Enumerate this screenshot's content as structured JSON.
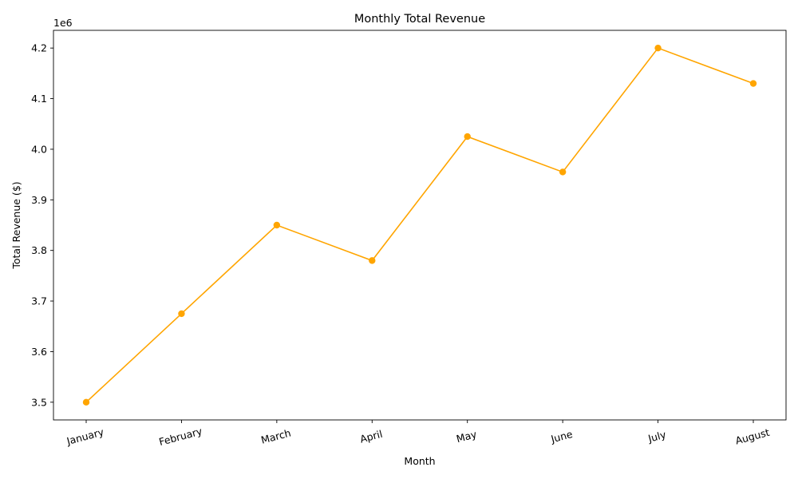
{
  "chart_data": {
    "type": "line",
    "title": "Monthly Total Revenue",
    "xlabel": "Month",
    "ylabel": "Total Revenue ($)",
    "y_offset_label": "1e6",
    "categories": [
      "January",
      "February",
      "March",
      "April",
      "May",
      "June",
      "July",
      "August"
    ],
    "series": [
      {
        "values": [
          3500000,
          3675000,
          3850000,
          3780000,
          4025000,
          3955000,
          4200000,
          4130000
        ],
        "color": "#ffa500",
        "marker": "circle"
      }
    ],
    "y_ticks": [
      3500000,
      3600000,
      3700000,
      3800000,
      3900000,
      4000000,
      4100000,
      4200000
    ],
    "y_tick_labels": [
      "3.5",
      "3.6",
      "3.7",
      "3.8",
      "3.9",
      "4.0",
      "4.1",
      "4.2"
    ],
    "ylim": [
      3465000,
      4235000
    ],
    "grid": false,
    "x_tick_rotation_deg": -15
  }
}
